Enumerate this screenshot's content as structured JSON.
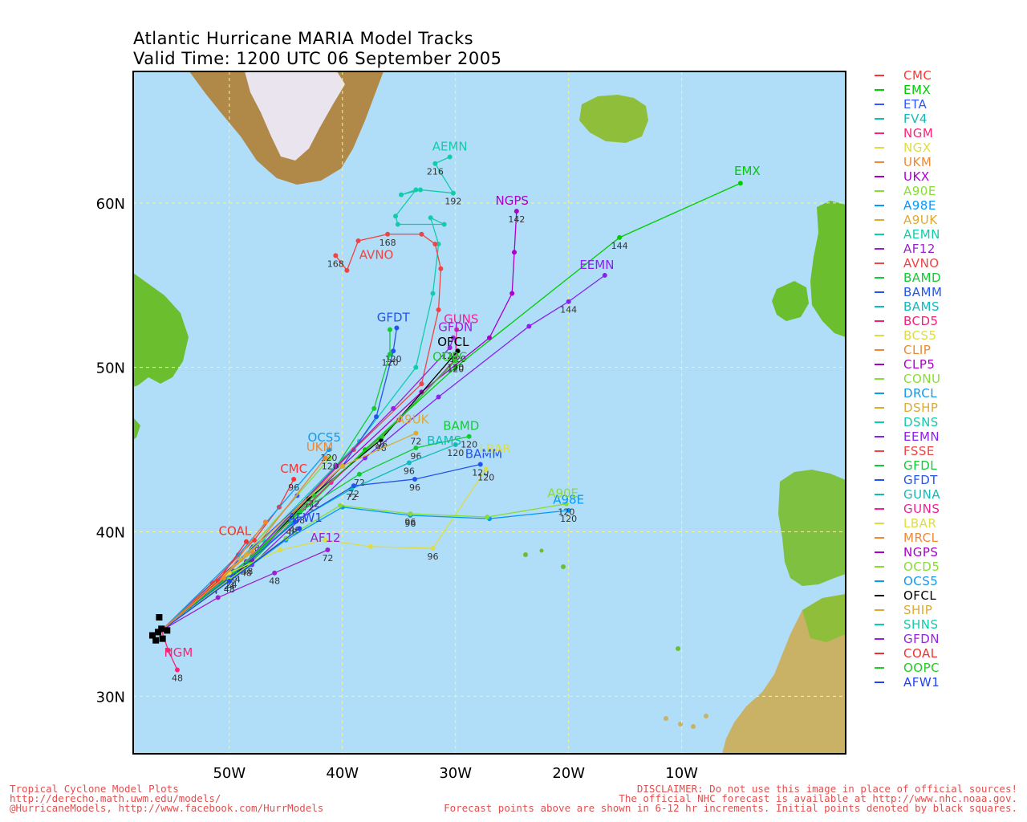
{
  "title": {
    "line1": "Atlantic Hurricane MARIA Model Tracks",
    "line2": "Valid Time: 1200 UTC 06 September 2005"
  },
  "map": {
    "lon_range": [
      -58.5,
      4.5
    ],
    "lat_range": [
      26.5,
      68
    ],
    "ocean_color": "#b0ddf7",
    "land_color": "#6bbf2e",
    "lon_ticks": [
      "50W",
      "40W",
      "30W",
      "20W",
      "10W"
    ],
    "lat_ticks": [
      "60N",
      "50N",
      "40N",
      "30N"
    ],
    "initial_points": [
      [
        -56.3,
        33.9
      ],
      [
        -56.0,
        34.1
      ],
      [
        -55.5,
        34.0
      ],
      [
        -56.8,
        33.7
      ],
      [
        -55.9,
        33.5
      ],
      [
        -56.5,
        33.4
      ],
      [
        -56.2,
        34.8
      ]
    ]
  },
  "tracks": [
    {
      "name": "CMC",
      "color": "#ff3333",
      "points": [
        [
          -56,
          34
        ],
        [
          -51.5,
          36.9
        ],
        [
          -47.8,
          39.5
        ],
        [
          -45.6,
          41.5
        ],
        [
          -44.3,
          43.2
        ]
      ],
      "hours": [
        "",
        "24",
        "48",
        "",
        "96"
      ]
    },
    {
      "name": "EMX",
      "color": "#00cc00",
      "points": [
        [
          -56,
          34
        ],
        [
          -48,
          38.2
        ],
        [
          -38,
          45
        ],
        [
          -30,
          50
        ],
        [
          -15.5,
          57.9
        ],
        [
          -4.8,
          61.2
        ]
      ],
      "hours": [
        "",
        "",
        "",
        "",
        "144",
        ""
      ]
    },
    {
      "name": "ETA",
      "color": "#3355ff",
      "points": [
        [
          -56,
          34
        ],
        [
          -49.8,
          37.7
        ],
        [
          -44,
          42.2
        ]
      ],
      "hours": [
        "",
        "48",
        ""
      ]
    },
    {
      "name": "AEMN",
      "color": "#11ccaa",
      "points": [
        [
          -56,
          34
        ],
        [
          -47,
          39.5
        ],
        [
          -38.5,
          45.5
        ],
        [
          -33.5,
          50
        ],
        [
          -32,
          54.5
        ],
        [
          -31.5,
          57.5
        ],
        [
          -32.2,
          59.1
        ],
        [
          -31,
          58.7
        ],
        [
          -35.1,
          58.7
        ],
        [
          -35.3,
          59.2
        ],
        [
          -33.5,
          60.8
        ],
        [
          -34.8,
          60.5
        ],
        [
          -33.1,
          60.8
        ],
        [
          -30.2,
          60.6
        ],
        [
          -31.8,
          62.4
        ],
        [
          -30.5,
          62.8
        ]
      ],
      "hours": [
        "",
        "",
        "",
        "",
        "",
        "",
        "",
        "",
        "",
        "",
        "",
        "",
        "",
        "192",
        "216",
        ""
      ]
    },
    {
      "name": "AVNO",
      "color": "#ee4444",
      "points": [
        [
          -56,
          34
        ],
        [
          -48,
          38.5
        ],
        [
          -39,
          45
        ],
        [
          -33,
          49
        ],
        [
          -31.5,
          53.5
        ],
        [
          -31.3,
          56
        ],
        [
          -31.8,
          57.5
        ],
        [
          -33,
          58.1
        ],
        [
          -36,
          58.1
        ],
        [
          -38.6,
          57.7
        ],
        [
          -39.6,
          55.9
        ],
        [
          -40.6,
          56.8
        ]
      ],
      "hours": [
        "",
        "",
        "",
        "",
        "",
        "",
        "",
        "",
        "168",
        "",
        "",
        "168"
      ]
    },
    {
      "name": "GFDT",
      "color": "#2255ee",
      "points": [
        [
          -56,
          34
        ],
        [
          -48,
          39
        ],
        [
          -40,
          44
        ],
        [
          -37,
          47
        ],
        [
          -35.5,
          51
        ],
        [
          -35.2,
          52.4
        ]
      ],
      "hours": [
        "",
        "",
        "",
        "",
        "120",
        ""
      ]
    },
    {
      "name": "GFDL",
      "color": "#11cc33",
      "points": [
        [
          -56,
          34
        ],
        [
          -48,
          38.5
        ],
        [
          -40.5,
          44
        ],
        [
          -37.2,
          47.5
        ],
        [
          -35.8,
          50.8
        ],
        [
          -35.8,
          52.3
        ]
      ],
      "hours": [
        "",
        "",
        "",
        "",
        "120",
        ""
      ]
    },
    {
      "name": "NGPS",
      "color": "#aa00cc",
      "points": [
        [
          -56,
          34
        ],
        [
          -48,
          38.3
        ],
        [
          -40,
          44
        ],
        [
          -33,
          48.5
        ],
        [
          -27,
          51.8
        ],
        [
          -25,
          54.5
        ],
        [
          -24.8,
          57
        ],
        [
          -24.6,
          59.5
        ]
      ],
      "hours": [
        "",
        "",
        "",
        "",
        "",
        "",
        "",
        "142"
      ]
    },
    {
      "name": "EEMN",
      "color": "#8822ee",
      "points": [
        [
          -56,
          34
        ],
        [
          -48,
          38
        ],
        [
          -38,
          44.5
        ],
        [
          -31.5,
          48.2
        ],
        [
          -23.5,
          52.5
        ],
        [
          -20,
          54
        ],
        [
          -16.8,
          55.6
        ]
      ],
      "hours": [
        "",
        "",
        "",
        "",
        "",
        "144",
        ""
      ]
    },
    {
      "name": "GUNS",
      "color": "#ee2299",
      "points": [
        [
          -56,
          34
        ],
        [
          -49,
          37.8
        ],
        [
          -41,
          43
        ],
        [
          -35,
          46.8
        ],
        [
          -30,
          50.5
        ],
        [
          -29.9,
          52.3
        ]
      ],
      "hours": [
        "",
        "",
        "",
        "",
        "120",
        ""
      ]
    },
    {
      "name": "GFDN",
      "color": "#9922dd",
      "points": [
        [
          -56,
          34
        ],
        [
          -48.5,
          38.2
        ],
        [
          -40.5,
          44
        ],
        [
          -35.5,
          47.5
        ],
        [
          -30.5,
          51.2
        ],
        [
          -30.2,
          51.8
        ]
      ],
      "hours": [
        "",
        "",
        "",
        "",
        "120",
        ""
      ]
    },
    {
      "name": "OFCL",
      "color": "#000000",
      "points": [
        [
          -56,
          34
        ],
        [
          -48.5,
          38
        ],
        [
          -43,
          42
        ],
        [
          -36.6,
          45.6
        ],
        [
          -29.8,
          51
        ]
      ],
      "hours": [
        "",
        "48",
        "72",
        "96",
        "120"
      ]
    },
    {
      "name": "OOPC",
      "color": "#22cc22",
      "points": [
        [
          -56,
          34
        ],
        [
          -48.4,
          38.1
        ],
        [
          -42.5,
          42.2
        ],
        [
          -36.5,
          45.8
        ],
        [
          -30,
          50.4
        ]
      ],
      "hours": [
        "",
        "48",
        "72",
        "96",
        "120"
      ]
    },
    {
      "name": "BAMD",
      "color": "#11cc33",
      "points": [
        [
          -56,
          34
        ],
        [
          -49.5,
          37.6
        ],
        [
          -43.8,
          41.2
        ],
        [
          -38.5,
          43.5
        ],
        [
          -33.5,
          45.1
        ],
        [
          -28.8,
          45.8
        ]
      ],
      "hours": [
        "",
        "24",
        "48",
        "72",
        "96",
        "120"
      ]
    },
    {
      "name": "BAMS",
      "color": "#11bbbb",
      "points": [
        [
          -56,
          34
        ],
        [
          -50,
          37.2
        ],
        [
          -44.5,
          40.5
        ],
        [
          -39.2,
          42.6
        ],
        [
          -34.1,
          44.2
        ],
        [
          -30,
          45.3
        ]
      ],
      "hours": [
        "",
        "24",
        "48",
        "72",
        "96",
        "120"
      ]
    },
    {
      "name": "BAMM",
      "color": "#2255ee",
      "points": [
        [
          -56,
          34
        ],
        [
          -49.8,
          37.3
        ],
        [
          -44.2,
          40.6
        ],
        [
          -39,
          42.8
        ],
        [
          -33.6,
          43.2
        ],
        [
          -27.8,
          44.1
        ]
      ],
      "hours": [
        "",
        "24",
        "48",
        "72",
        "96",
        "120"
      ]
    },
    {
      "name": "LBAR",
      "color": "#dddd44",
      "points": [
        [
          -56,
          34
        ],
        [
          -50,
          37.5
        ],
        [
          -45.5,
          38.9
        ],
        [
          -41.5,
          39.5
        ],
        [
          -37.5,
          39.1
        ],
        [
          -32,
          39
        ],
        [
          -27.3,
          43.8
        ]
      ],
      "hours": [
        "",
        "",
        "",
        "",
        "",
        "96",
        "120"
      ]
    },
    {
      "name": "A98E",
      "color": "#0099ff",
      "points": [
        [
          -56,
          34
        ],
        [
          -50,
          37
        ],
        [
          -45,
          39.5
        ],
        [
          -40,
          41.5
        ],
        [
          -34,
          41
        ],
        [
          -27,
          40.8
        ],
        [
          -20,
          41.3
        ]
      ],
      "hours": [
        "",
        "",
        "",
        "",
        "96",
        "",
        "120"
      ]
    },
    {
      "name": "A90E",
      "color": "#88dd33",
      "points": [
        [
          -56,
          34
        ],
        [
          -50,
          37.1
        ],
        [
          -45,
          39.6
        ],
        [
          -40.2,
          41.6
        ],
        [
          -34,
          41.1
        ],
        [
          -27.2,
          40.9
        ],
        [
          -20.2,
          41.7
        ]
      ],
      "hours": [
        "",
        "",
        "",
        "",
        "96",
        "",
        "120"
      ]
    },
    {
      "name": "AF12",
      "color": "#9922cc",
      "points": [
        [
          -56,
          34
        ],
        [
          -51,
          36
        ],
        [
          -46,
          37.5
        ],
        [
          -41.3,
          38.9
        ]
      ],
      "hours": [
        "",
        "",
        "48",
        "72"
      ]
    },
    {
      "name": "AFW1",
      "color": "#2244ee",
      "points": [
        [
          -56,
          34
        ],
        [
          -50,
          37
        ],
        [
          -43.8,
          40.2
        ]
      ],
      "hours": [
        "",
        "48",
        ""
      ]
    },
    {
      "name": "NGM",
      "color": "#ff2277",
      "points": [
        [
          -56,
          34
        ],
        [
          -55.4,
          32.8
        ],
        [
          -54.6,
          31.6
        ]
      ],
      "hours": [
        "",
        "",
        "48"
      ]
    },
    {
      "name": "OCD5",
      "color": "#88dd33",
      "points": [
        [
          -56,
          34
        ],
        [
          -49,
          38.3
        ],
        [
          -41.1,
          44.5
        ]
      ],
      "hours": [
        "",
        "",
        "120"
      ]
    },
    {
      "name": "OCS5",
      "color": "#1199ee",
      "points": [
        [
          -56,
          34
        ],
        [
          -49.2,
          38.6
        ],
        [
          -41.2,
          45
        ]
      ],
      "hours": [
        "",
        "",
        "120"
      ]
    },
    {
      "name": "UKM",
      "color": "#ee8833",
      "points": [
        [
          -56,
          34
        ],
        [
          -48,
          38.8
        ],
        [
          -41.5,
          44.5
        ]
      ],
      "hours": [
        "",
        "",
        ""
      ]
    },
    {
      "name": "A9UK",
      "color": "#ddaa33",
      "points": [
        [
          -56,
          34
        ],
        [
          -48.5,
          38.6
        ],
        [
          -40,
          44
        ],
        [
          -33.5,
          46
        ]
      ],
      "hours": [
        "",
        "",
        "",
        "72"
      ]
    },
    {
      "name": "COAL",
      "color": "#ee3333",
      "points": [
        [
          -56,
          34
        ],
        [
          -51,
          37
        ],
        [
          -48.5,
          39.4
        ]
      ],
      "hours": [
        "",
        "",
        ""
      ]
    },
    {
      "name": "CLIP",
      "color": "#ee8833",
      "points": [
        [
          -56,
          34
        ],
        [
          -50.5,
          37.2
        ],
        [
          -46.8,
          40.6
        ]
      ],
      "hours": [
        "",
        "",
        ""
      ]
    }
  ],
  "track_labels": [
    {
      "text": "CMC",
      "color": "#ff3333",
      "lon": -44.3,
      "lat": 43.6
    },
    {
      "text": "EMX",
      "color": "#00cc00",
      "lon": -4.2,
      "lat": 61.7
    },
    {
      "text": "AEMN",
      "color": "#11ccaa",
      "lon": -30.5,
      "lat": 63.2
    },
    {
      "text": "AVNO",
      "color": "#ee4444",
      "lon": -37,
      "lat": 56.6
    },
    {
      "text": "GFDT",
      "color": "#2255ee",
      "lon": -35.5,
      "lat": 52.8
    },
    {
      "text": "NGPS",
      "color": "#aa00cc",
      "lon": -25,
      "lat": 59.9
    },
    {
      "text": "EEMN",
      "color": "#8822ee",
      "lon": -17.5,
      "lat": 56
    },
    {
      "text": "GUNS",
      "color": "#ee2299",
      "lon": -29.5,
      "lat": 52.7
    },
    {
      "text": "GFDN",
      "color": "#9922dd",
      "lon": -30,
      "lat": 52.2
    },
    {
      "text": "OFCL",
      "color": "#000000",
      "lon": -30.2,
      "lat": 51.3
    },
    {
      "text": "OOPC",
      "color": "#22cc22",
      "lon": -30.5,
      "lat": 50.4
    },
    {
      "text": "BAMD",
      "color": "#11cc33",
      "lon": -29.5,
      "lat": 46.2
    },
    {
      "text": "BAMS",
      "color": "#11bbbb",
      "lon": -31,
      "lat": 45.3
    },
    {
      "text": "BAMM",
      "color": "#2255ee",
      "lon": -27.5,
      "lat": 44.5
    },
    {
      "text": "LBAR",
      "color": "#dddd44",
      "lon": -26.5,
      "lat": 44.8
    },
    {
      "text": "A98E",
      "color": "#0099ff",
      "lon": -20,
      "lat": 41.7
    },
    {
      "text": "A90E",
      "color": "#88dd33",
      "lon": -20.5,
      "lat": 42.1
    },
    {
      "text": "AF12",
      "color": "#9922cc",
      "lon": -41.5,
      "lat": 39.4
    },
    {
      "text": "AFW1",
      "color": "#2244ee",
      "lon": -43.3,
      "lat": 40.6
    },
    {
      "text": "NGM",
      "color": "#ff2277",
      "lon": -54.5,
      "lat": 32.4
    },
    {
      "text": "COAL",
      "color": "#ee3333",
      "lon": -49.5,
      "lat": 39.8
    },
    {
      "text": "OCS5",
      "color": "#1199ee",
      "lon": -41.6,
      "lat": 45.5
    },
    {
      "text": "UKM",
      "color": "#ee8833",
      "lon": -42,
      "lat": 44.9
    },
    {
      "text": "A9UK",
      "color": "#ddaa33",
      "lon": -33.8,
      "lat": 46.6
    }
  ],
  "legend": [
    {
      "name": "CMC",
      "color": "#ff3333"
    },
    {
      "name": "EMX",
      "color": "#00cc00"
    },
    {
      "name": "ETA",
      "color": "#3355ff"
    },
    {
      "name": "FV4",
      "color": "#11bbbb"
    },
    {
      "name": "NGM",
      "color": "#ff2277"
    },
    {
      "name": "NGX",
      "color": "#dddd44"
    },
    {
      "name": "UKM",
      "color": "#ee8833"
    },
    {
      "name": "UKX",
      "color": "#aa00cc"
    },
    {
      "name": "A90E",
      "color": "#88dd33"
    },
    {
      "name": "A98E",
      "color": "#0099ff"
    },
    {
      "name": "A9UK",
      "color": "#ddaa33"
    },
    {
      "name": "AEMN",
      "color": "#11ccaa"
    },
    {
      "name": "AF12",
      "color": "#9922cc"
    },
    {
      "name": "AVNO",
      "color": "#ee4444"
    },
    {
      "name": "BAMD",
      "color": "#11cc33"
    },
    {
      "name": "BAMM",
      "color": "#2255ee"
    },
    {
      "name": "BAMS",
      "color": "#11bbbb"
    },
    {
      "name": "BCD5",
      "color": "#ee2277"
    },
    {
      "name": "BCS5",
      "color": "#dddd44"
    },
    {
      "name": "CLIP",
      "color": "#ee8833"
    },
    {
      "name": "CLP5",
      "color": "#aa00cc"
    },
    {
      "name": "CONU",
      "color": "#88dd33"
    },
    {
      "name": "DRCL",
      "color": "#1199ee"
    },
    {
      "name": "DSHP",
      "color": "#ddaa33"
    },
    {
      "name": "DSNS",
      "color": "#11ccaa"
    },
    {
      "name": "EEMN",
      "color": "#8822ee"
    },
    {
      "name": "FSSE",
      "color": "#ee4444"
    },
    {
      "name": "GFDL",
      "color": "#11cc33"
    },
    {
      "name": "GFDT",
      "color": "#2255ee"
    },
    {
      "name": "GUNA",
      "color": "#11bbbb"
    },
    {
      "name": "GUNS",
      "color": "#ee2299"
    },
    {
      "name": "LBAR",
      "color": "#dddd44"
    },
    {
      "name": "MRCL",
      "color": "#ee8833"
    },
    {
      "name": "NGPS",
      "color": "#aa00cc"
    },
    {
      "name": "OCD5",
      "color": "#88dd33"
    },
    {
      "name": "OCS5",
      "color": "#1199ee"
    },
    {
      "name": "OFCL",
      "color": "#000000"
    },
    {
      "name": "SHIP",
      "color": "#ddaa33"
    },
    {
      "name": "SHNS",
      "color": "#11ccaa"
    },
    {
      "name": "GFDN",
      "color": "#9922dd"
    },
    {
      "name": "COAL",
      "color": "#ee3333"
    },
    {
      "name": "OOPC",
      "color": "#22cc22"
    },
    {
      "name": "AFW1",
      "color": "#2244ee"
    }
  ],
  "footer": {
    "left1": "Tropical Cyclone Model Plots",
    "left2": "http://derecho.math.uwm.edu/models/",
    "left3": "@HurricaneModels, http://www.facebook.com/HurrModels",
    "right1": "DISCLAIMER: Do not use this image in place of official sources!",
    "right2": "The official NHC forecast is available at http://www.nhc.noaa.gov.",
    "right3": "Forecast points above are shown in 6-12 hr increments. Initial points denoted by black squares."
  }
}
